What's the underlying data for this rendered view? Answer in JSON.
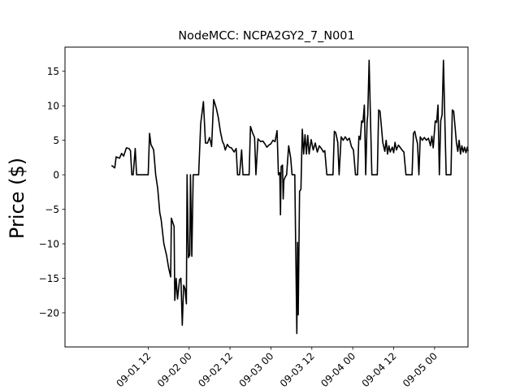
{
  "chart_data": {
    "type": "line",
    "title": "NodeMCC: NCPA2GY2_7_N001",
    "xlabel": "",
    "ylabel": "Price ($)",
    "x_axis": {
      "kind": "datetime",
      "range": [
        "2023-08-31 11:36",
        "2023-09-05 09:48"
      ],
      "ticks": [
        {
          "value": "2023-09-01 12:00",
          "label": "09-01 12"
        },
        {
          "value": "2023-09-02 00:00",
          "label": "09-02 00"
        },
        {
          "value": "2023-09-02 12:00",
          "label": "09-02 12"
        },
        {
          "value": "2023-09-03 00:00",
          "label": "09-03 00"
        },
        {
          "value": "2023-09-03 12:00",
          "label": "09-03 12"
        },
        {
          "value": "2023-09-04 00:00",
          "label": "09-04 00"
        },
        {
          "value": "2023-09-04 12:00",
          "label": "09-04 12"
        },
        {
          "value": "2023-09-05 00:00",
          "label": "09-05 00"
        }
      ]
    },
    "y_axis": {
      "range": [
        -24.95,
        18.5
      ],
      "ticks": [
        {
          "value": 15,
          "label": "15"
        },
        {
          "value": 10,
          "label": "10"
        },
        {
          "value": 5,
          "label": "5"
        },
        {
          "value": 0,
          "label": "0"
        },
        {
          "value": -5,
          "label": "−5"
        },
        {
          "value": -10,
          "label": "−10"
        },
        {
          "value": -15,
          "label": "−15"
        },
        {
          "value": -20,
          "label": "−20"
        }
      ]
    },
    "grid": false,
    "series": [
      {
        "color": "#000000",
        "points": [
          [
            "2023-09-01 01:24",
            1.3
          ],
          [
            "2023-09-01 02:12",
            1.0
          ],
          [
            "2023-09-01 02:36",
            2.6
          ],
          [
            "2023-09-01 03:36",
            2.4
          ],
          [
            "2023-09-01 04:12",
            3.1
          ],
          [
            "2023-09-01 04:48",
            2.7
          ],
          [
            "2023-09-01 05:36",
            3.9
          ],
          [
            "2023-09-01 06:24",
            3.8
          ],
          [
            "2023-09-01 06:48",
            3.5
          ],
          [
            "2023-09-01 07:12",
            0.0
          ],
          [
            "2023-09-01 07:36",
            0.0
          ],
          [
            "2023-09-01 08:12",
            3.8
          ],
          [
            "2023-09-01 08:36",
            0.0
          ],
          [
            "2023-09-01 09:36",
            0.0
          ],
          [
            "2023-09-01 10:24",
            0.0
          ],
          [
            "2023-09-01 11:12",
            0.0
          ],
          [
            "2023-09-01 12:00",
            0.0
          ],
          [
            "2023-09-01 12:24",
            6.0
          ],
          [
            "2023-09-01 12:48",
            4.4
          ],
          [
            "2023-09-01 13:36",
            3.6
          ],
          [
            "2023-09-01 14:12",
            0.0
          ],
          [
            "2023-09-01 14:48",
            -2.0
          ],
          [
            "2023-09-01 15:24",
            -5.5
          ],
          [
            "2023-09-01 15:48",
            -6.5
          ],
          [
            "2023-09-01 16:36",
            -10.0
          ],
          [
            "2023-09-01 17:24",
            -11.7
          ],
          [
            "2023-09-01 18:00",
            -13.5
          ],
          [
            "2023-09-01 18:36",
            -14.8
          ],
          [
            "2023-09-01 18:48",
            -6.3
          ],
          [
            "2023-09-01 19:12",
            -6.9
          ],
          [
            "2023-09-01 19:36",
            -7.5
          ],
          [
            "2023-09-01 19:48",
            -18.2
          ],
          [
            "2023-09-01 20:12",
            -15.0
          ],
          [
            "2023-09-01 20:36",
            -18.0
          ],
          [
            "2023-09-01 21:12",
            -15.2
          ],
          [
            "2023-09-01 21:36",
            -15.0
          ],
          [
            "2023-09-01 22:00",
            -21.8
          ],
          [
            "2023-09-01 22:24",
            -16.0
          ],
          [
            "2023-09-01 22:48",
            -16.5
          ],
          [
            "2023-09-01 23:12",
            -18.7
          ],
          [
            "2023-09-01 23:24",
            0.0
          ],
          [
            "2023-09-01 23:48",
            -12.0
          ],
          [
            "2023-09-02 00:12",
            -11.6
          ],
          [
            "2023-09-02 00:24",
            0.0
          ],
          [
            "2023-09-02 00:48",
            -11.8
          ],
          [
            "2023-09-02 01:12",
            0.0
          ],
          [
            "2023-09-02 01:36",
            0.0
          ],
          [
            "2023-09-02 02:12",
            0.0
          ],
          [
            "2023-09-02 02:48",
            0.0
          ],
          [
            "2023-09-02 03:24",
            7.4
          ],
          [
            "2023-09-02 04:12",
            10.6
          ],
          [
            "2023-09-02 04:48",
            4.6
          ],
          [
            "2023-09-02 05:24",
            4.6
          ],
          [
            "2023-09-02 06:00",
            5.4
          ],
          [
            "2023-09-02 06:36",
            4.1
          ],
          [
            "2023-09-02 07:12",
            10.9
          ],
          [
            "2023-09-02 08:00",
            9.6
          ],
          [
            "2023-09-02 08:36",
            8.2
          ],
          [
            "2023-09-02 09:12",
            6.2
          ],
          [
            "2023-09-02 09:48",
            4.8
          ],
          [
            "2023-09-02 10:12",
            4.4
          ],
          [
            "2023-09-02 10:36",
            3.6
          ],
          [
            "2023-09-02 11:12",
            4.4
          ],
          [
            "2023-09-02 11:48",
            4.0
          ],
          [
            "2023-09-02 12:24",
            3.9
          ],
          [
            "2023-09-02 13:12",
            3.3
          ],
          [
            "2023-09-02 13:48",
            3.8
          ],
          [
            "2023-09-02 14:12",
            0.0
          ],
          [
            "2023-09-02 14:48",
            0.0
          ],
          [
            "2023-09-02 15:24",
            3.6
          ],
          [
            "2023-09-02 15:48",
            0.0
          ],
          [
            "2023-09-02 16:24",
            0.0
          ],
          [
            "2023-09-02 17:00",
            0.0
          ],
          [
            "2023-09-02 17:36",
            0.0
          ],
          [
            "2023-09-02 18:00",
            7.0
          ],
          [
            "2023-09-02 18:36",
            6.1
          ],
          [
            "2023-09-02 19:12",
            5.4
          ],
          [
            "2023-09-02 19:36",
            0.0
          ],
          [
            "2023-09-02 20:12",
            5.2
          ],
          [
            "2023-09-02 21:00",
            4.8
          ],
          [
            "2023-09-02 21:36",
            4.9
          ],
          [
            "2023-09-02 22:12",
            4.5
          ],
          [
            "2023-09-02 22:48",
            4.0
          ],
          [
            "2023-09-02 23:24",
            4.3
          ],
          [
            "2023-09-03 00:00",
            4.5
          ],
          [
            "2023-09-03 00:36",
            5.0
          ],
          [
            "2023-09-03 01:12",
            4.8
          ],
          [
            "2023-09-03 01:48",
            6.4
          ],
          [
            "2023-09-03 02:12",
            0.0
          ],
          [
            "2023-09-03 02:36",
            0.3
          ],
          [
            "2023-09-03 02:48",
            -5.8
          ],
          [
            "2023-09-03 03:00",
            1.2
          ],
          [
            "2023-09-03 03:24",
            1.4
          ],
          [
            "2023-09-03 03:36",
            -3.5
          ],
          [
            "2023-09-03 03:48",
            -0.8
          ],
          [
            "2023-09-03 04:12",
            -0.3
          ],
          [
            "2023-09-03 04:36",
            0.0
          ],
          [
            "2023-09-03 05:12",
            4.2
          ],
          [
            "2023-09-03 05:48",
            2.4
          ],
          [
            "2023-09-03 06:12",
            0.0
          ],
          [
            "2023-09-03 06:36",
            0.0
          ],
          [
            "2023-09-03 07:00",
            0.0
          ],
          [
            "2023-09-03 07:12",
            -8.0
          ],
          [
            "2023-09-03 07:36",
            -23.0
          ],
          [
            "2023-09-03 07:48",
            -9.8
          ],
          [
            "2023-09-03 08:00",
            -20.3
          ],
          [
            "2023-09-03 08:24",
            -2.4
          ],
          [
            "2023-09-03 08:48",
            -2.1
          ],
          [
            "2023-09-03 09:12",
            6.6
          ],
          [
            "2023-09-03 09:36",
            3.0
          ],
          [
            "2023-09-03 10:00",
            5.8
          ],
          [
            "2023-09-03 10:24",
            3.0
          ],
          [
            "2023-09-03 10:48",
            5.7
          ],
          [
            "2023-09-03 11:12",
            3.0
          ],
          [
            "2023-09-03 11:48",
            5.1
          ],
          [
            "2023-09-03 12:24",
            3.6
          ],
          [
            "2023-09-03 13:00",
            4.6
          ],
          [
            "2023-09-03 13:36",
            3.3
          ],
          [
            "2023-09-03 14:12",
            4.2
          ],
          [
            "2023-09-03 14:48",
            3.8
          ],
          [
            "2023-09-03 15:24",
            3.3
          ],
          [
            "2023-09-03 15:48",
            3.5
          ],
          [
            "2023-09-03 16:24",
            0.0
          ],
          [
            "2023-09-03 17:00",
            0.0
          ],
          [
            "2023-09-03 17:36",
            0.0
          ],
          [
            "2023-09-03 18:12",
            0.0
          ],
          [
            "2023-09-03 18:36",
            6.3
          ],
          [
            "2023-09-03 19:00",
            6.1
          ],
          [
            "2023-09-03 19:36",
            4.7
          ],
          [
            "2023-09-03 20:00",
            0.0
          ],
          [
            "2023-09-03 20:36",
            5.5
          ],
          [
            "2023-09-03 21:12",
            5.0
          ],
          [
            "2023-09-03 21:48",
            5.5
          ],
          [
            "2023-09-03 22:24",
            5.0
          ],
          [
            "2023-09-03 23:00",
            5.3
          ],
          [
            "2023-09-03 23:36",
            4.1
          ],
          [
            "2023-09-04 00:12",
            3.6
          ],
          [
            "2023-09-04 00:48",
            0.0
          ],
          [
            "2023-09-04 01:24",
            0.0
          ],
          [
            "2023-09-04 01:48",
            5.6
          ],
          [
            "2023-09-04 02:12",
            5.1
          ],
          [
            "2023-09-04 02:36",
            7.8
          ],
          [
            "2023-09-04 03:00",
            7.6
          ],
          [
            "2023-09-04 03:24",
            10.1
          ],
          [
            "2023-09-04 03:48",
            0.0
          ],
          [
            "2023-09-04 04:12",
            7.6
          ],
          [
            "2023-09-04 04:24",
            8.7
          ],
          [
            "2023-09-04 04:48",
            16.6
          ],
          [
            "2023-09-04 05:12",
            8.1
          ],
          [
            "2023-09-04 05:36",
            0.0
          ],
          [
            "2023-09-04 06:12",
            0.0
          ],
          [
            "2023-09-04 06:48",
            0.0
          ],
          [
            "2023-09-04 07:12",
            0.0
          ],
          [
            "2023-09-04 07:36",
            9.4
          ],
          [
            "2023-09-04 08:00",
            9.2
          ],
          [
            "2023-09-04 08:24",
            7.0
          ],
          [
            "2023-09-04 08:48",
            4.7
          ],
          [
            "2023-09-04 09:24",
            3.4
          ],
          [
            "2023-09-04 09:48",
            5.0
          ],
          [
            "2023-09-04 10:12",
            3.0
          ],
          [
            "2023-09-04 10:36",
            4.2
          ],
          [
            "2023-09-04 11:00",
            3.3
          ],
          [
            "2023-09-04 11:36",
            4.0
          ],
          [
            "2023-09-04 12:00",
            3.2
          ],
          [
            "2023-09-04 12:24",
            4.7
          ],
          [
            "2023-09-04 12:48",
            3.6
          ],
          [
            "2023-09-04 13:24",
            4.3
          ],
          [
            "2023-09-04 14:00",
            3.9
          ],
          [
            "2023-09-04 14:36",
            3.5
          ],
          [
            "2023-09-04 15:00",
            3.3
          ],
          [
            "2023-09-04 15:36",
            0.0
          ],
          [
            "2023-09-04 16:12",
            0.0
          ],
          [
            "2023-09-04 16:48",
            0.0
          ],
          [
            "2023-09-04 17:24",
            0.0
          ],
          [
            "2023-09-04 17:48",
            6.0
          ],
          [
            "2023-09-04 18:12",
            6.3
          ],
          [
            "2023-09-04 18:36",
            5.3
          ],
          [
            "2023-09-04 19:00",
            4.5
          ],
          [
            "2023-09-04 19:24",
            0.0
          ],
          [
            "2023-09-04 19:48",
            5.5
          ],
          [
            "2023-09-04 20:24",
            5.0
          ],
          [
            "2023-09-04 21:00",
            5.4
          ],
          [
            "2023-09-04 21:36",
            5.0
          ],
          [
            "2023-09-04 22:12",
            5.3
          ],
          [
            "2023-09-04 22:48",
            4.2
          ],
          [
            "2023-09-04 23:12",
            5.6
          ],
          [
            "2023-09-04 23:36",
            3.9
          ],
          [
            "2023-09-05 00:12",
            7.8
          ],
          [
            "2023-09-05 00:36",
            7.6
          ],
          [
            "2023-09-05 01:00",
            10.1
          ],
          [
            "2023-09-05 01:24",
            0.0
          ],
          [
            "2023-09-05 01:48",
            7.8
          ],
          [
            "2023-09-05 02:12",
            8.7
          ],
          [
            "2023-09-05 02:36",
            16.6
          ],
          [
            "2023-09-05 03:00",
            8.1
          ],
          [
            "2023-09-05 03:24",
            0.0
          ],
          [
            "2023-09-05 03:48",
            0.0
          ],
          [
            "2023-09-05 04:24",
            0.0
          ],
          [
            "2023-09-05 04:48",
            0.0
          ],
          [
            "2023-09-05 05:12",
            9.4
          ],
          [
            "2023-09-05 05:36",
            9.2
          ],
          [
            "2023-09-05 06:00",
            7.0
          ],
          [
            "2023-09-05 06:24",
            4.7
          ],
          [
            "2023-09-05 06:48",
            3.4
          ],
          [
            "2023-09-05 07:12",
            5.0
          ],
          [
            "2023-09-05 07:36",
            3.0
          ],
          [
            "2023-09-05 08:00",
            4.2
          ],
          [
            "2023-09-05 08:24",
            3.3
          ],
          [
            "2023-09-05 08:48",
            4.0
          ],
          [
            "2023-09-05 09:12",
            3.2
          ],
          [
            "2023-09-05 09:36",
            4.0
          ],
          [
            "2023-09-05 09:48",
            3.5
          ]
        ]
      }
    ]
  }
}
